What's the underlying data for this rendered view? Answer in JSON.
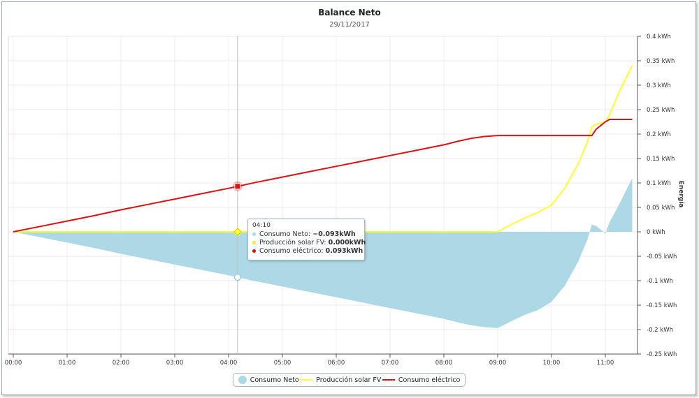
{
  "chart_data": {
    "type": "area",
    "title": "Balance Neto",
    "subtitle": "29/11/2017",
    "ylabel": "Energía",
    "ylim": [
      -0.25,
      0.4
    ],
    "y_ticks": [
      0.4,
      0.35,
      0.3,
      0.25,
      0.2,
      0.15,
      0.1,
      0.05,
      0,
      -0.05,
      -0.1,
      -0.15,
      -0.2,
      -0.25
    ],
    "y_tick_labels": [
      "0.4 kWh",
      "0.35 kWh",
      "0.3 kWh",
      "0.25 kWh",
      "0.2 kWh",
      "0.15 kWh",
      "0.1 kWh",
      "0.05 kWh",
      "0 kWh",
      "-0.05 kWh",
      "-0.1 kWh",
      "-0.15 kWh",
      "-0.2 kWh",
      "-0.25 kWh"
    ],
    "x_tick_labels": [
      "00:00",
      "01:00",
      "02:00",
      "03:00",
      "04:00",
      "05:00",
      "06:00",
      "07:00",
      "08:00",
      "09:00",
      "10:00",
      "11:00"
    ],
    "x_hours": [
      0,
      0.5,
      1,
      1.5,
      2,
      2.5,
      3,
      3.5,
      4,
      4.5,
      5,
      5.5,
      6,
      6.5,
      7,
      7.5,
      8,
      8.25,
      8.5,
      8.75,
      9,
      9.25,
      9.5,
      9.75,
      10,
      10.25,
      10.5,
      10.67,
      10.75,
      10.83,
      11,
      11.08,
      11.25,
      11.5
    ],
    "x_labels": [
      "00:00",
      "00:30",
      "01:00",
      "01:30",
      "02:00",
      "02:30",
      "03:00",
      "03:30",
      "04:00",
      "04:30",
      "05:00",
      "05:30",
      "06:00",
      "06:30",
      "07:00",
      "07:30",
      "08:00",
      "08:15",
      "08:30",
      "08:45",
      "09:00",
      "09:15",
      "09:30",
      "09:45",
      "10:00",
      "10:15",
      "10:30",
      "10:40",
      "10:45",
      "10:50",
      "11:00",
      "11:05",
      "11:15",
      "11:30"
    ],
    "series": [
      {
        "name": "Consumo Neto",
        "type": "area",
        "color": "#add8e6",
        "values": [
          0,
          -0.011,
          -0.022,
          -0.033,
          -0.045,
          -0.056,
          -0.067,
          -0.078,
          -0.089,
          -0.101,
          -0.112,
          -0.123,
          -0.134,
          -0.145,
          -0.156,
          -0.167,
          -0.178,
          -0.185,
          -0.191,
          -0.195,
          -0.197,
          -0.183,
          -0.17,
          -0.16,
          -0.143,
          -0.11,
          -0.06,
          -0.015,
          0.015,
          0.012,
          -0.003,
          0.02,
          0.055,
          0.11
        ]
      },
      {
        "name": "Producción solar FV",
        "type": "line",
        "color": "#ffff33",
        "values": [
          0,
          0,
          0,
          0,
          0,
          0,
          0,
          0,
          0,
          0,
          0,
          0,
          0,
          0,
          0,
          0,
          0,
          0,
          0,
          0,
          0,
          0.015,
          0.028,
          0.04,
          0.055,
          0.09,
          0.14,
          0.185,
          0.215,
          0.22,
          0.225,
          0.24,
          0.285,
          0.34
        ]
      },
      {
        "name": "Consumo eléctrico",
        "type": "line",
        "color": "#dd1111",
        "values": [
          0,
          0.011,
          0.022,
          0.033,
          0.045,
          0.056,
          0.067,
          0.078,
          0.089,
          0.101,
          0.112,
          0.123,
          0.134,
          0.145,
          0.156,
          0.167,
          0.178,
          0.185,
          0.191,
          0.195,
          0.197,
          0.197,
          0.197,
          0.197,
          0.197,
          0.197,
          0.197,
          0.197,
          0.197,
          0.21,
          0.225,
          0.23,
          0.23,
          0.23
        ]
      }
    ],
    "grid": true,
    "legend_position": "bottom-center"
  },
  "tooltip": {
    "time": "04:10",
    "rows": [
      {
        "label": "Consumo Neto: ",
        "value": "−0.093kWh",
        "color": "#add8e6"
      },
      {
        "label": "Producción solar FV: ",
        "value": "0.000kWh",
        "color": "#ffff33"
      },
      {
        "label": "Consumo eléctrico: ",
        "value": "0.093kWh",
        "color": "#dd1111"
      }
    ]
  },
  "hover_hour": 4.1667,
  "hover_values": {
    "neto": -0.093,
    "solar": 0.0,
    "consumo": 0.093
  },
  "legend": [
    {
      "label": "Consumo Neto",
      "color": "#add8e6",
      "marker": "dot"
    },
    {
      "label": "Producción solar FV",
      "color": "#ffff33",
      "marker": "line"
    },
    {
      "label": "Consumo eléctrico",
      "color": "#dd1111",
      "marker": "line"
    }
  ]
}
